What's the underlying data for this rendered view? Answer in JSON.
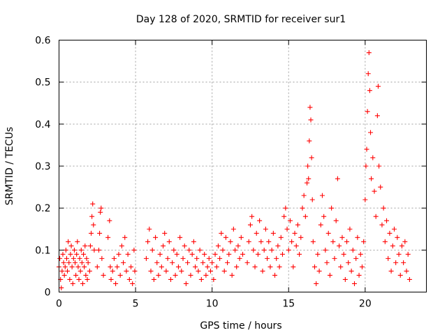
{
  "chart_data": {
    "type": "scatter",
    "title": "Day 128 of 2020, SRMTID for receiver sur1",
    "xlabel": "GPS time / hours",
    "ylabel": "SRMTID / TECUs",
    "xlim": [
      0,
      24
    ],
    "ylim": [
      0,
      0.6
    ],
    "xticks": [
      0,
      5,
      10,
      15,
      20
    ],
    "xtick_labels": [
      "0",
      "5",
      "10",
      "15",
      "20"
    ],
    "yticks": [
      0,
      0.1,
      0.2,
      0.3,
      0.4,
      0.5,
      0.6
    ],
    "ytick_labels": [
      "0",
      "0.1",
      "0.2",
      "0.3",
      "0.4",
      "0.5",
      "0.6"
    ],
    "grid": true,
    "marker": "+",
    "color": "#ff0000",
    "series": [
      {
        "name": "SRMTID",
        "points": [
          [
            0.0,
            0.06
          ],
          [
            0.05,
            0.08
          ],
          [
            0.1,
            0.03
          ],
          [
            0.15,
            0.01
          ],
          [
            0.2,
            0.05
          ],
          [
            0.25,
            0.09
          ],
          [
            0.3,
            0.07
          ],
          [
            0.35,
            0.04
          ],
          [
            0.4,
            0.06
          ],
          [
            0.45,
            0.1
          ],
          [
            0.5,
            0.08
          ],
          [
            0.55,
            0.05
          ],
          [
            0.6,
            0.12
          ],
          [
            0.65,
            0.07
          ],
          [
            0.7,
            0.03
          ],
          [
            0.75,
            0.09
          ],
          [
            0.8,
            0.11
          ],
          [
            0.85,
            0.06
          ],
          [
            0.9,
            0.02
          ],
          [
            0.95,
            0.08
          ],
          [
            1.0,
            0.1
          ],
          [
            1.05,
            0.07
          ],
          [
            1.1,
            0.04
          ],
          [
            1.15,
            0.09
          ],
          [
            1.2,
            0.12
          ],
          [
            1.25,
            0.06
          ],
          [
            1.3,
            0.03
          ],
          [
            1.35,
            0.08
          ],
          [
            1.4,
            0.05
          ],
          [
            1.45,
            0.1
          ],
          [
            1.5,
            0.07
          ],
          [
            1.55,
            0.02
          ],
          [
            1.6,
            0.09
          ],
          [
            1.65,
            0.06
          ],
          [
            1.7,
            0.11
          ],
          [
            1.75,
            0.04
          ],
          [
            1.8,
            0.08
          ],
          [
            1.85,
            0.03
          ],
          [
            1.9,
            0.07
          ],
          [
            2.0,
            0.05
          ],
          [
            2.05,
            0.11
          ],
          [
            2.1,
            0.14
          ],
          [
            2.15,
            0.18
          ],
          [
            2.2,
            0.21
          ],
          [
            2.25,
            0.16
          ],
          [
            2.3,
            0.1
          ],
          [
            2.5,
            0.06
          ],
          [
            2.6,
            0.1
          ],
          [
            2.65,
            0.14
          ],
          [
            2.7,
            0.19
          ],
          [
            2.75,
            0.2
          ],
          [
            2.8,
            0.08
          ],
          [
            2.9,
            0.04
          ],
          [
            3.2,
            0.13
          ],
          [
            3.3,
            0.17
          ],
          [
            3.35,
            0.06
          ],
          [
            3.4,
            0.03
          ],
          [
            3.5,
            0.05
          ],
          [
            3.6,
            0.08
          ],
          [
            3.7,
            0.02
          ],
          [
            3.8,
            0.06
          ],
          [
            3.9,
            0.09
          ],
          [
            4.0,
            0.04
          ],
          [
            4.1,
            0.11
          ],
          [
            4.2,
            0.07
          ],
          [
            4.3,
            0.13
          ],
          [
            4.4,
            0.05
          ],
          [
            4.5,
            0.09
          ],
          [
            4.6,
            0.03
          ],
          [
            4.7,
            0.06
          ],
          [
            4.8,
            0.02
          ],
          [
            4.9,
            0.1
          ],
          [
            4.95,
            0.05
          ],
          [
            5.7,
            0.08
          ],
          [
            5.8,
            0.12
          ],
          [
            5.9,
            0.15
          ],
          [
            6.0,
            0.05
          ],
          [
            6.1,
            0.1
          ],
          [
            6.2,
            0.03
          ],
          [
            6.3,
            0.13
          ],
          [
            6.4,
            0.07
          ],
          [
            6.5,
            0.04
          ],
          [
            6.6,
            0.09
          ],
          [
            6.7,
            0.06
          ],
          [
            6.8,
            0.11
          ],
          [
            6.9,
            0.14
          ],
          [
            7.0,
            0.05
          ],
          [
            7.1,
            0.08
          ],
          [
            7.2,
            0.12
          ],
          [
            7.3,
            0.03
          ],
          [
            7.4,
            0.07
          ],
          [
            7.5,
            0.1
          ],
          [
            7.6,
            0.04
          ],
          [
            7.7,
            0.09
          ],
          [
            7.8,
            0.06
          ],
          [
            7.9,
            0.13
          ],
          [
            8.0,
            0.05
          ],
          [
            8.1,
            0.08
          ],
          [
            8.2,
            0.11
          ],
          [
            8.3,
            0.02
          ],
          [
            8.4,
            0.07
          ],
          [
            8.5,
            0.1
          ],
          [
            8.6,
            0.04
          ],
          [
            8.7,
            0.09
          ],
          [
            8.8,
            0.12
          ],
          [
            8.9,
            0.06
          ],
          [
            9.0,
            0.08
          ],
          [
            9.1,
            0.05
          ],
          [
            9.2,
            0.1
          ],
          [
            9.3,
            0.03
          ],
          [
            9.4,
            0.07
          ],
          [
            9.5,
            0.09
          ],
          [
            9.6,
            0.04
          ],
          [
            9.7,
            0.06
          ],
          [
            9.8,
            0.08
          ],
          [
            9.9,
            0.05
          ],
          [
            10.0,
            0.07
          ],
          [
            10.1,
            0.03
          ],
          [
            10.2,
            0.09
          ],
          [
            10.3,
            0.06
          ],
          [
            10.4,
            0.11
          ],
          [
            10.5,
            0.08
          ],
          [
            10.6,
            0.14
          ],
          [
            10.7,
            0.1
          ],
          [
            10.8,
            0.05
          ],
          [
            10.9,
            0.13
          ],
          [
            11.0,
            0.07
          ],
          [
            11.1,
            0.09
          ],
          [
            11.2,
            0.12
          ],
          [
            11.3,
            0.04
          ],
          [
            11.4,
            0.15
          ],
          [
            11.5,
            0.1
          ],
          [
            11.6,
            0.06
          ],
          [
            11.7,
            0.11
          ],
          [
            11.8,
            0.08
          ],
          [
            11.9,
            0.13
          ],
          [
            12.0,
            0.09
          ],
          [
            12.3,
            0.07
          ],
          [
            12.4,
            0.12
          ],
          [
            12.5,
            0.16
          ],
          [
            12.6,
            0.18
          ],
          [
            12.7,
            0.1
          ],
          [
            12.8,
            0.06
          ],
          [
            12.9,
            0.14
          ],
          [
            13.0,
            0.09
          ],
          [
            13.1,
            0.17
          ],
          [
            13.2,
            0.12
          ],
          [
            13.3,
            0.05
          ],
          [
            13.4,
            0.1
          ],
          [
            13.5,
            0.15
          ],
          [
            13.6,
            0.08
          ],
          [
            13.7,
            0.12
          ],
          [
            13.8,
            0.06
          ],
          [
            13.9,
            0.1
          ],
          [
            14.0,
            0.14
          ],
          [
            14.1,
            0.04
          ],
          [
            14.2,
            0.08
          ],
          [
            14.3,
            0.11
          ],
          [
            14.4,
            0.06
          ],
          [
            14.5,
            0.13
          ],
          [
            14.6,
            0.09
          ],
          [
            14.7,
            0.18
          ],
          [
            14.8,
            0.2
          ],
          [
            14.9,
            0.15
          ],
          [
            15.0,
            0.1
          ],
          [
            15.1,
            0.17
          ],
          [
            15.2,
            0.12
          ],
          [
            15.3,
            0.06
          ],
          [
            15.4,
            0.14
          ],
          [
            15.5,
            0.11
          ],
          [
            15.6,
            0.16
          ],
          [
            15.7,
            0.09
          ],
          [
            15.8,
            0.13
          ],
          [
            15.9,
            0.2
          ],
          [
            16.0,
            0.23
          ],
          [
            16.1,
            0.18
          ],
          [
            16.2,
            0.26
          ],
          [
            16.25,
            0.3
          ],
          [
            16.3,
            0.27
          ],
          [
            16.35,
            0.36
          ],
          [
            16.4,
            0.44
          ],
          [
            16.45,
            0.41
          ],
          [
            16.5,
            0.32
          ],
          [
            16.55,
            0.22
          ],
          [
            16.6,
            0.12
          ],
          [
            16.7,
            0.06
          ],
          [
            16.8,
            0.02
          ],
          [
            16.9,
            0.09
          ],
          [
            17.0,
            0.05
          ],
          [
            17.1,
            0.16
          ],
          [
            17.2,
            0.23
          ],
          [
            17.3,
            0.18
          ],
          [
            17.4,
            0.1
          ],
          [
            17.5,
            0.07
          ],
          [
            17.6,
            0.14
          ],
          [
            17.7,
            0.04
          ],
          [
            17.8,
            0.2
          ],
          [
            17.9,
            0.12
          ],
          [
            18.0,
            0.08
          ],
          [
            18.1,
            0.17
          ],
          [
            18.2,
            0.27
          ],
          [
            18.3,
            0.11
          ],
          [
            18.4,
            0.06
          ],
          [
            18.5,
            0.13
          ],
          [
            18.6,
            0.09
          ],
          [
            18.7,
            0.03
          ],
          [
            18.8,
            0.12
          ],
          [
            18.9,
            0.07
          ],
          [
            19.0,
            0.15
          ],
          [
            19.1,
            0.05
          ],
          [
            19.2,
            0.1
          ],
          [
            19.3,
            0.02
          ],
          [
            19.4,
            0.08
          ],
          [
            19.5,
            0.13
          ],
          [
            19.6,
            0.04
          ],
          [
            19.7,
            0.09
          ],
          [
            19.8,
            0.06
          ],
          [
            19.9,
            0.12
          ],
          [
            20.0,
            0.22
          ],
          [
            20.05,
            0.3
          ],
          [
            20.1,
            0.34
          ],
          [
            20.15,
            0.43
          ],
          [
            20.2,
            0.52
          ],
          [
            20.25,
            0.57
          ],
          [
            20.3,
            0.48
          ],
          [
            20.35,
            0.38
          ],
          [
            20.4,
            0.27
          ],
          [
            20.5,
            0.32
          ],
          [
            20.6,
            0.24
          ],
          [
            20.7,
            0.18
          ],
          [
            20.8,
            0.42
          ],
          [
            20.85,
            0.49
          ],
          [
            20.9,
            0.3
          ],
          [
            21.0,
            0.25
          ],
          [
            21.1,
            0.16
          ],
          [
            21.2,
            0.2
          ],
          [
            21.3,
            0.12
          ],
          [
            21.4,
            0.17
          ],
          [
            21.5,
            0.08
          ],
          [
            21.6,
            0.14
          ],
          [
            21.7,
            0.05
          ],
          [
            21.8,
            0.11
          ],
          [
            21.9,
            0.15
          ],
          [
            22.0,
            0.07
          ],
          [
            22.1,
            0.13
          ],
          [
            22.2,
            0.09
          ],
          [
            22.3,
            0.04
          ],
          [
            22.4,
            0.11
          ],
          [
            22.5,
            0.07
          ],
          [
            22.6,
            0.12
          ],
          [
            22.7,
            0.05
          ],
          [
            22.8,
            0.09
          ],
          [
            22.9,
            0.03
          ]
        ]
      }
    ]
  }
}
